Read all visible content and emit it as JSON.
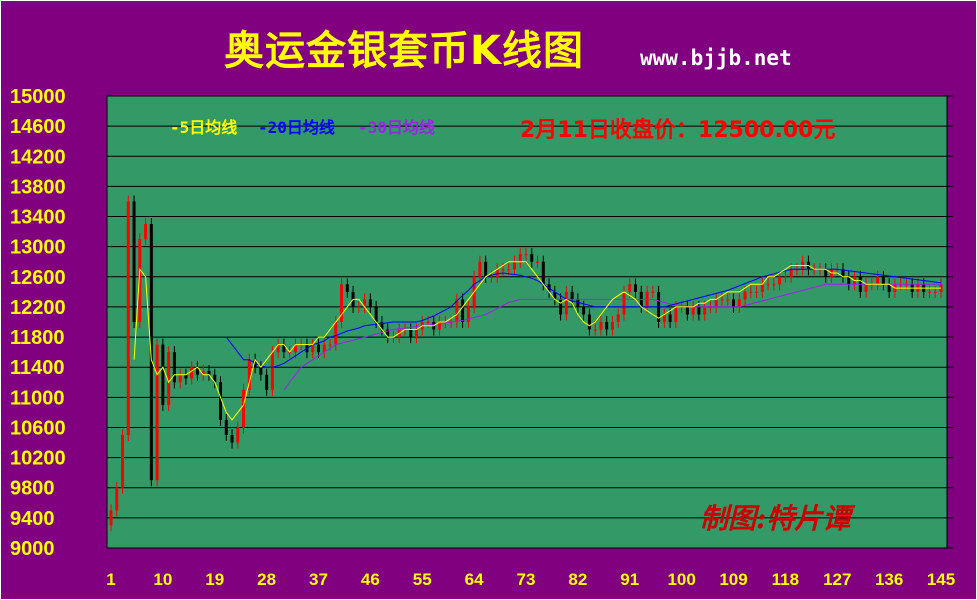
{
  "page": {
    "title": "奥运金银套币K线图",
    "website": "www.bjjb.net",
    "author": "制图:特片谭"
  },
  "colors": {
    "background": "#800080",
    "plot_area": "#339966",
    "title": "#ffff00",
    "up_candle": "#ff0000",
    "down_candle": "#000000",
    "ma5": "#ffff00",
    "ma20": "#0000ff",
    "ma30": "#a020f0"
  },
  "chart_data": {
    "type": "candlestick",
    "title": "奥运金银套币K线图",
    "annotation": "2月11日收盘价：12500.00元",
    "ylim": [
      9000,
      15000
    ],
    "yticks": [
      15000,
      14600,
      14200,
      13800,
      13400,
      13000,
      12600,
      12200,
      11800,
      11400,
      11000,
      10600,
      10200,
      9800,
      9400,
      9000
    ],
    "xlim": [
      1,
      145
    ],
    "xticks": [
      1,
      10,
      19,
      28,
      37,
      46,
      55,
      64,
      73,
      82,
      91,
      100,
      109,
      118,
      127,
      136,
      145
    ],
    "grid": true,
    "legend": {
      "placement": "top-left",
      "entries": [
        {
          "label": "-5日均线",
          "color": "#ffff00"
        },
        {
          "label": "-20日均线",
          "color": "#0000ff"
        },
        {
          "label": "-30日均线",
          "color": "#a020f0"
        }
      ]
    },
    "candles_close": [
      9500,
      9800,
      10500,
      13600,
      12000,
      13100,
      13300,
      9900,
      11700,
      10900,
      11600,
      11200,
      11300,
      11250,
      11400,
      11300,
      11350,
      11300,
      11200,
      10700,
      10500,
      10400,
      10600,
      11100,
      11500,
      11400,
      11300,
      11100,
      11600,
      11700,
      11600,
      11600,
      11700,
      11700,
      11600,
      11700,
      11600,
      11700,
      11700,
      12000,
      12500,
      12400,
      12200,
      12200,
      12300,
      12200,
      12000,
      11900,
      11800,
      11800,
      11900,
      11900,
      11800,
      11900,
      12000,
      12000,
      11900,
      12000,
      12000,
      12000,
      12300,
      12000,
      12200,
      12600,
      12800,
      12600,
      12600,
      12700,
      12700,
      12700,
      12800,
      12900,
      12900,
      12800,
      12800,
      12500,
      12400,
      12300,
      12100,
      12400,
      12300,
      12200,
      12100,
      11900,
      11900,
      12000,
      11900,
      12000,
      12100,
      12400,
      12500,
      12400,
      12200,
      12400,
      12400,
      12000,
      12100,
      12000,
      12200,
      12200,
      12100,
      12200,
      12100,
      12200,
      12200,
      12300,
      12300,
      12300,
      12200,
      12300,
      12400,
      12400,
      12400,
      12500,
      12500,
      12500,
      12600,
      12600,
      12700,
      12700,
      12800,
      12700,
      12700,
      12700,
      12600,
      12700,
      12700,
      12600,
      12500,
      12600,
      12400,
      12500,
      12500,
      12600,
      12500,
      12400,
      12500,
      12500,
      12500,
      12400,
      12500,
      12400,
      12400,
      12400,
      12500
    ],
    "ma5": [
      null,
      null,
      null,
      null,
      11500,
      12700,
      12600,
      11500,
      11300,
      11400,
      11200,
      11300,
      11300,
      11300,
      11350,
      11400,
      11300,
      11300,
      11200,
      11000,
      10800,
      10700,
      10800,
      10900,
      11200,
      11500,
      11400,
      11500,
      11600,
      11700,
      11700,
      11600,
      11700,
      11700,
      11700,
      11700,
      11800,
      11800,
      11900,
      12000,
      12100,
      12200,
      12300,
      12300,
      12200,
      12100,
      12000,
      11900,
      11800,
      11800,
      11850,
      11900,
      11900,
      11900,
      11950,
      11950,
      11950,
      12000,
      12000,
      12050,
      12100,
      12200,
      12300,
      12400,
      12500,
      12600,
      12650,
      12700,
      12750,
      12800,
      12800,
      12800,
      12800,
      12700,
      12600,
      12500,
      12400,
      12300,
      12250,
      12300,
      12250,
      12100,
      12000,
      11950,
      12000,
      12100,
      12200,
      12300,
      12350,
      12400,
      12350,
      12300,
      12200,
      12150,
      12100,
      12050,
      12100,
      12150,
      12200,
      12200,
      12200,
      12200,
      12250,
      12250,
      12300,
      12300,
      12350,
      12400,
      12400,
      12400,
      12450,
      12500,
      12500,
      12500,
      12600,
      12600,
      12650,
      12700,
      12750,
      12750,
      12750,
      12750,
      12700,
      12700,
      12700,
      12650,
      12650,
      12600,
      12600,
      12550,
      12550,
      12500,
      12500,
      12500,
      12500,
      12500,
      12450,
      12450,
      12450,
      12450,
      12450,
      12450,
      12450,
      12450,
      12450
    ],
    "ma20": [
      null,
      null,
      null,
      null,
      null,
      null,
      null,
      null,
      null,
      null,
      null,
      null,
      null,
      null,
      null,
      null,
      null,
      null,
      null,
      null,
      11800,
      11700,
      11600,
      11500,
      11500,
      11450,
      11420,
      11400,
      11400,
      11420,
      11450,
      11500,
      11550,
      11600,
      11650,
      11700,
      11720,
      11750,
      11800,
      11820,
      11850,
      11880,
      11900,
      11920,
      11950,
      11960,
      11970,
      11980,
      11990,
      12000,
      12000,
      12000,
      12000,
      12000,
      12020,
      12050,
      12080,
      12120,
      12160,
      12200,
      12280,
      12350,
      12420,
      12500,
      12550,
      12600,
      12620,
      12640,
      12650,
      12640,
      12630,
      12620,
      12600,
      12580,
      12550,
      12500,
      12450,
      12400,
      12350,
      12300,
      12280,
      12260,
      12240,
      12220,
      12200,
      12200,
      12200,
      12200,
      12200,
      12200,
      12200,
      12200,
      12200,
      12200,
      12200,
      12200,
      12200,
      12220,
      12240,
      12260,
      12280,
      12300,
      12320,
      12340,
      12360,
      12380,
      12400,
      12420,
      12450,
      12480,
      12510,
      12540,
      12570,
      12600,
      12620,
      12640,
      12660,
      12680,
      12700,
      12700,
      12700,
      12700,
      12700,
      12700,
      12700,
      12700,
      12700,
      12690,
      12680,
      12670,
      12660,
      12650,
      12640,
      12630,
      12620,
      12610,
      12600,
      12590,
      12580,
      12570,
      12560,
      12550,
      12540,
      12530,
      12520
    ],
    "ma30": [
      null,
      null,
      null,
      null,
      null,
      null,
      null,
      null,
      null,
      null,
      null,
      null,
      null,
      null,
      null,
      null,
      null,
      null,
      null,
      null,
      null,
      null,
      null,
      null,
      null,
      null,
      null,
      null,
      null,
      null,
      11100,
      11200,
      11300,
      11400,
      11450,
      11500,
      11550,
      11600,
      11650,
      11700,
      11720,
      11740,
      11760,
      11780,
      11800,
      11820,
      11840,
      11860,
      11880,
      11900,
      11910,
      11920,
      11930,
      11940,
      11950,
      11960,
      11970,
      11980,
      11990,
      12000,
      12010,
      12020,
      12040,
      12060,
      12080,
      12100,
      12140,
      12180,
      12220,
      12260,
      12280,
      12300,
      12300,
      12300,
      12300,
      12300,
      12300,
      12300,
      12300,
      12300,
      12300,
      12300,
      12300,
      12300,
      12300,
      12300,
      12300,
      12300,
      12300,
      12300,
      12300,
      12300,
      12300,
      12300,
      12300,
      12280,
      12260,
      12240,
      12230,
      12220,
      12210,
      12200,
      12200,
      12200,
      12200,
      12200,
      12200,
      12200,
      12200,
      12200,
      12220,
      12240,
      12260,
      12280,
      12300,
      12320,
      12340,
      12360,
      12380,
      12400,
      12420,
      12440,
      12460,
      12480,
      12500,
      12500,
      12500,
      12500,
      12500,
      12500,
      12500,
      12500,
      12500,
      12500,
      12500,
      12500,
      12500,
      12500,
      12500,
      12500,
      12500,
      12500,
      12500,
      12500,
      12500
    ]
  }
}
